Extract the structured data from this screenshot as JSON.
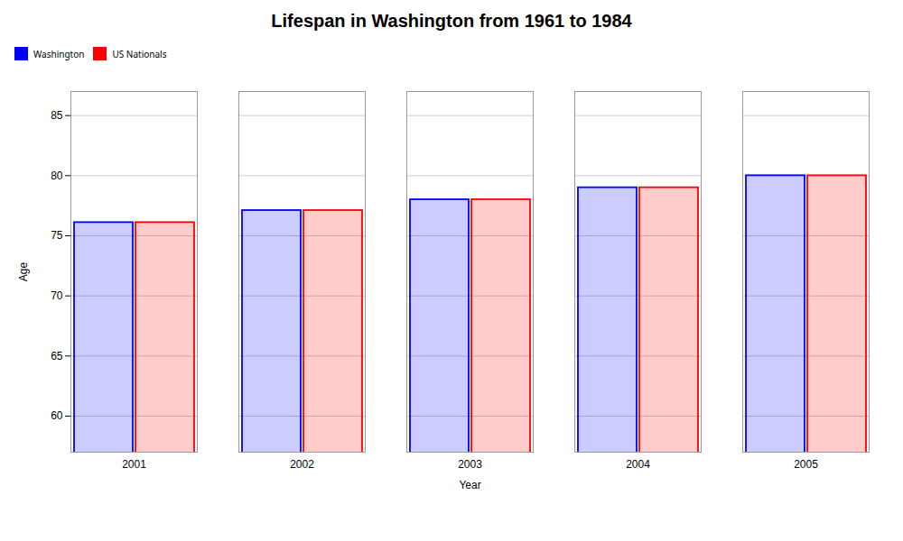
{
  "chart_data": {
    "type": "bar",
    "title": "Lifespan in Washington from 1961 to 1984",
    "xlabel": "Year",
    "ylabel": "Age",
    "categories": [
      "2001",
      "2002",
      "2003",
      "2004",
      "2005"
    ],
    "series": [
      {
        "name": "Washington",
        "color": "#0000ff",
        "values": [
          76.1,
          77.1,
          78.0,
          79.0,
          80.0
        ]
      },
      {
        "name": "US Nationals",
        "color": "#ff0000",
        "values": [
          76.1,
          77.1,
          78.0,
          79.0,
          80.0
        ]
      }
    ],
    "ylim": [
      57,
      87
    ],
    "yticks": [
      60,
      65,
      70,
      75,
      80,
      85
    ],
    "grid": true,
    "legend": "top"
  }
}
